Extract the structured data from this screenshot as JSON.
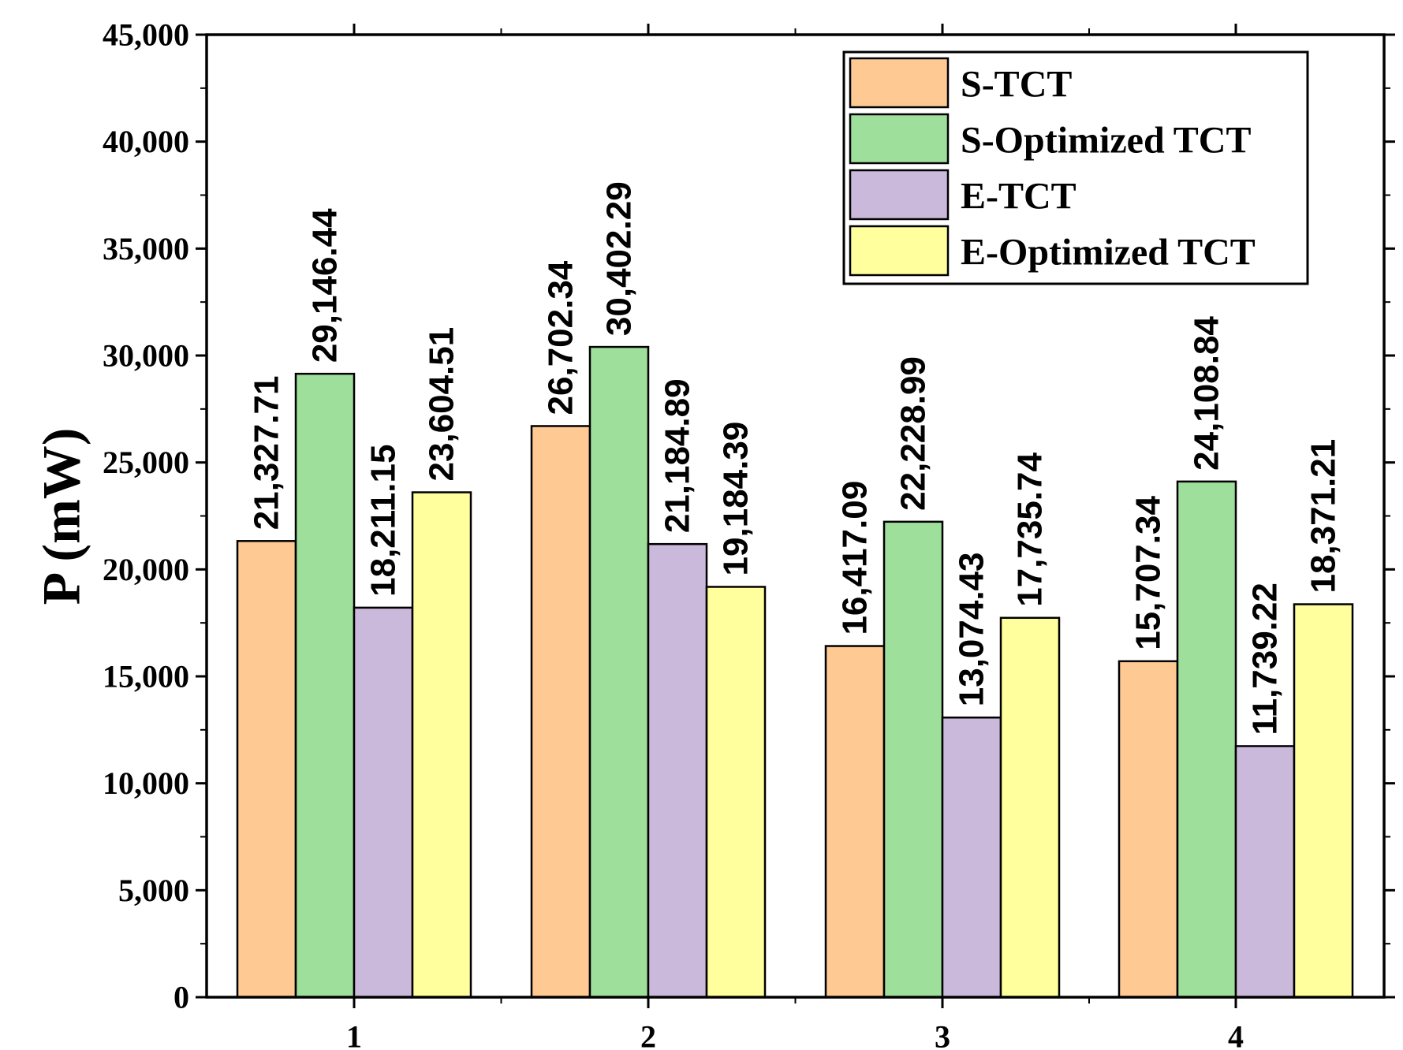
{
  "chart_data": {
    "type": "bar",
    "title": "",
    "xlabel": "",
    "ylabel": "P (mW)",
    "ylim": [
      0,
      45000
    ],
    "yticks": [
      0,
      5000,
      10000,
      15000,
      20000,
      25000,
      30000,
      35000,
      40000,
      45000
    ],
    "ytick_labels": [
      "0",
      "5,000",
      "10,000",
      "15,000",
      "20,000",
      "25,000",
      "30,000",
      "35,000",
      "40,000",
      "45,000"
    ],
    "categories": [
      "1",
      "2",
      "3",
      "4"
    ],
    "legend_position": "top-right",
    "series": [
      {
        "name": "S-TCT",
        "color": "#FFC993",
        "values": [
          21327.71,
          26702.34,
          16417.09,
          15707.34
        ],
        "labels": [
          "21,327.71",
          "26,702.34",
          "16,417.09",
          "15,707.34"
        ]
      },
      {
        "name": "S-Optimized TCT",
        "color": "#9EDF9B",
        "values": [
          29146.44,
          30402.29,
          22228.99,
          24108.84
        ],
        "labels": [
          "29,146.44",
          "30,402.29",
          "22,228.99",
          "24,108.84"
        ]
      },
      {
        "name": "E-TCT",
        "color": "#CBB9DC",
        "values": [
          18211.15,
          21184.89,
          13074.43,
          11739.22
        ],
        "labels": [
          "18,211.15",
          "21,184.89",
          "13,074.43",
          "11,739.22"
        ]
      },
      {
        "name": "E-Optimized TCT",
        "color": "#FFFF9E",
        "values": [
          23604.51,
          19184.39,
          17735.74,
          18371.21
        ],
        "labels": [
          "23,604.51",
          "19,184.39",
          "17,735.74",
          "18,371.21"
        ]
      }
    ]
  }
}
